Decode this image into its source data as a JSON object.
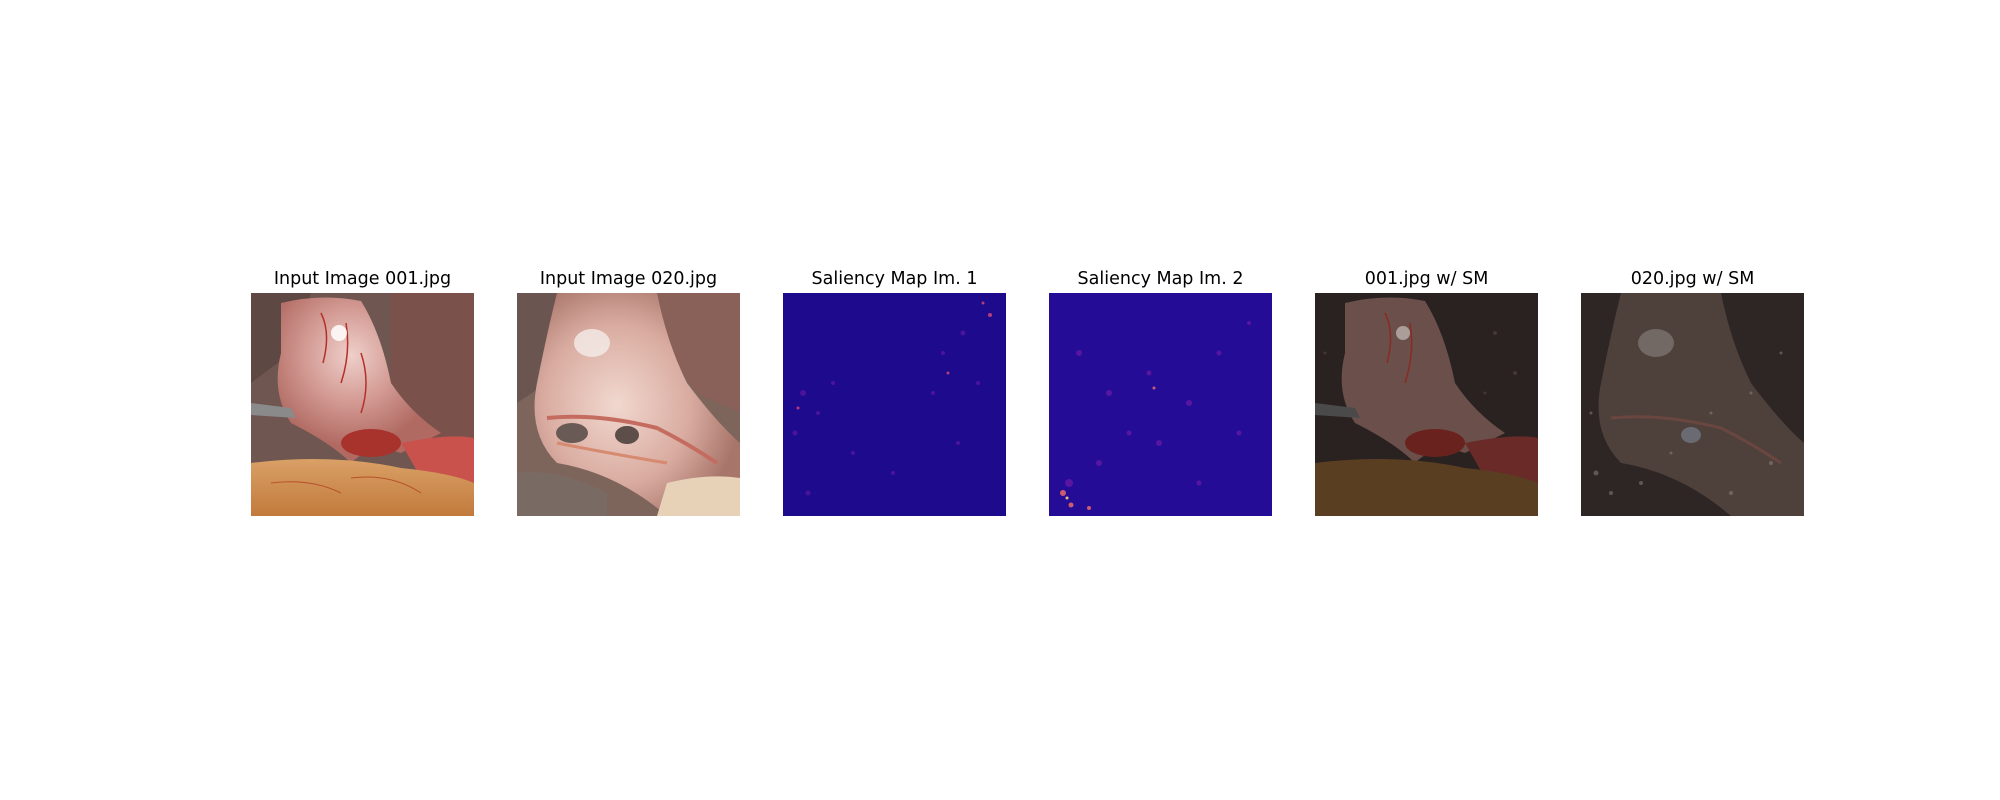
{
  "figure": {
    "panels": [
      {
        "title": "Input Image 001.jpg",
        "image": "laparoscopic-surgery-photo",
        "palette": [
          "#7c5a52",
          "#d9a39a",
          "#b2403a",
          "#c98a4a"
        ]
      },
      {
        "title": "Input Image 020.jpg",
        "image": "laparoscopic-surgery-photo",
        "palette": [
          "#846a60",
          "#e2b8ad",
          "#c46f66",
          "#dfc3a3"
        ]
      },
      {
        "title": "Saliency Map Im. 1",
        "image": "saliency-heatmap",
        "palette": [
          "#1e0a8c",
          "#3a0c9e",
          "#8e1ea8",
          "#e85a5a"
        ]
      },
      {
        "title": "Saliency Map Im. 2",
        "image": "saliency-heatmap",
        "palette": [
          "#250c96",
          "#4a10a4",
          "#a82aa0",
          "#f07a4a"
        ]
      },
      {
        "title": "001.jpg w/ SM",
        "image": "saliency-overlay-photo",
        "palette": [
          "#2a2420",
          "#4a3530",
          "#8a5a50",
          "#6a4a2a"
        ]
      },
      {
        "title": "020.jpg w/ SM",
        "image": "saliency-overlay-photo",
        "palette": [
          "#2e2624",
          "#453833",
          "#7a6a62",
          "#5a4a40"
        ]
      }
    ]
  }
}
